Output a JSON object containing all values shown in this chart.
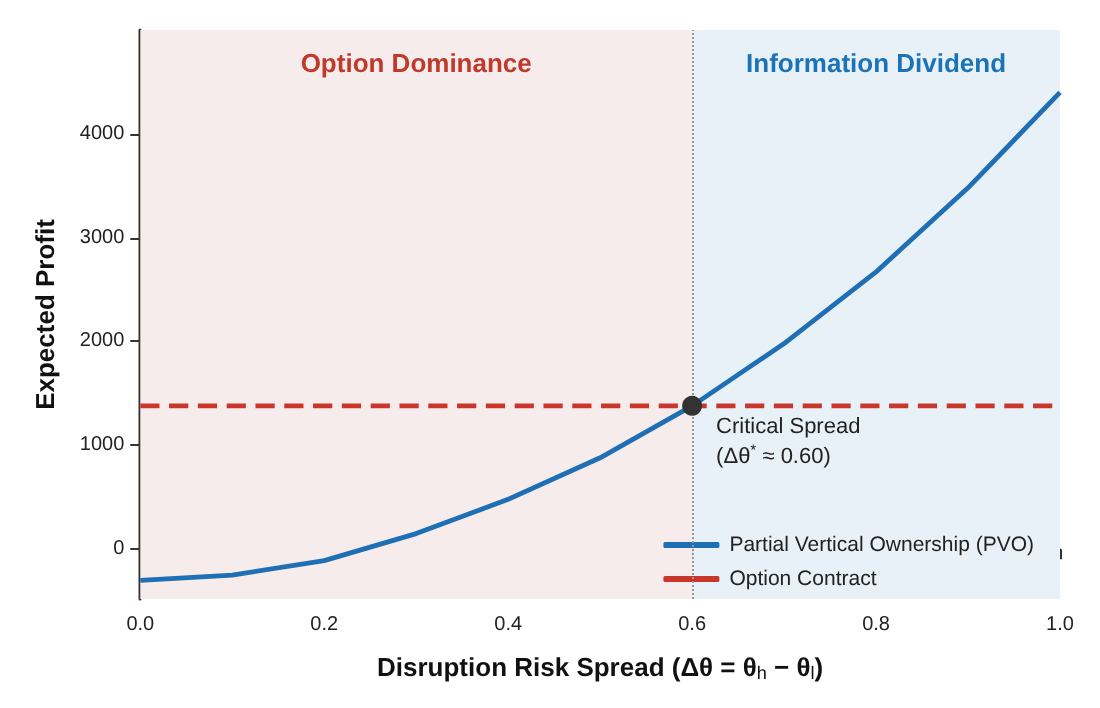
{
  "chart_data": {
    "type": "line",
    "xlabel": "Disruption Risk Spread (Δθ = θ$_{h}$ − θ$_{l}$)",
    "ylabel": "Expected Profit",
    "xlim": [
      0,
      1
    ],
    "xticks": [
      {
        "value": 0,
        "label": "0.0"
      },
      0.2,
      0.4,
      0.6,
      0.8,
      {
        "value": 1,
        "label": "1.0"
      }
    ],
    "ylim": [
      -480,
      5000
    ],
    "yticks": [
      0,
      1000,
      2000,
      3000,
      4000
    ],
    "series": [
      {
        "name": "Partial Vertical Ownership (PVO)",
        "color": "#1f6fb5",
        "line_style": "solid",
        "x": [
          0,
          0.1,
          0.2,
          0.3,
          0.4,
          0.5,
          0.6,
          0.7,
          0.8,
          0.9,
          1.0
        ],
        "values": [
          -300,
          -250,
          -110,
          150,
          480,
          880,
          1380,
          1980,
          2670,
          3480,
          4400
        ]
      },
      {
        "name": "Option Contract",
        "color": "#c9372c",
        "line_style": "dashed",
        "x": [
          0,
          1
        ],
        "values": [
          1380,
          1380
        ]
      }
    ],
    "bands": [
      {
        "axis": "x",
        "from": 0,
        "to": 0.6,
        "label": "Option Dominance",
        "color": "#f7ecec"
      },
      {
        "axis": "x",
        "from": 0.6,
        "to": 1,
        "label": "Information Dividend",
        "color": "#e9f1f8"
      }
    ],
    "ref_lines": [
      {
        "axis": "x",
        "value": 0.6,
        "color": "#999999",
        "line_style": "dotted"
      }
    ],
    "annotations": [
      {
        "text": "Critical Spread\n(Δθ$^{*}$ ≈ 0.60)",
        "x": 0.6,
        "y": 1380
      }
    ],
    "grid": false,
    "legend": "bottom right",
    "marker": "none"
  }
}
